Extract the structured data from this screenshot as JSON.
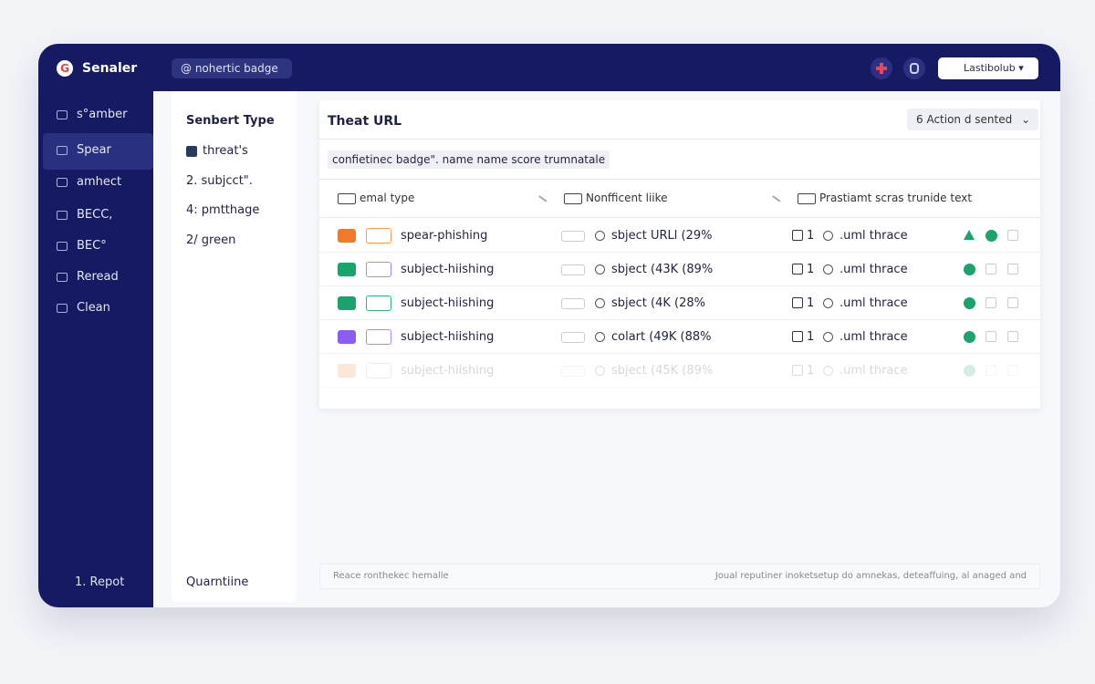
{
  "header": {
    "logo": "G",
    "app_name": "Senaler",
    "badge": "@ nohertic badge",
    "account": "Lastibolub"
  },
  "sidebar": {
    "items": [
      "s°amber",
      "Spear",
      "amhect",
      "BECC,",
      "BEC°",
      "Reread",
      "Clean"
    ],
    "footer": "1. Repot"
  },
  "panel": {
    "title": "Senbert Type",
    "items": [
      "threat's",
      "2.  subjcct\".",
      "4:  pmtthage",
      "2/  green"
    ],
    "footer": "Quarntiine"
  },
  "main": {
    "title": "Theat URL",
    "action": "6  Action d sented",
    "filter": "confietinec badge\". name name score trumnatale",
    "columns": [
      "emal type",
      "Nonfficent liike",
      "Prastiamt scras trunide text"
    ],
    "rows": [
      {
        "type": "spear-phishing",
        "confidence": "sbject URLl (29%",
        "num": "1",
        "text": ".uml thrace"
      },
      {
        "type": "subject-hiishing",
        "confidence": "sbject (43K (89%",
        "num": "1",
        "text": ".uml thrace"
      },
      {
        "type": "subject-hiishing",
        "confidence": "sbject (4K (28%",
        "num": "1",
        "text": ".uml thrace"
      },
      {
        "type": "subject-hiishing",
        "confidence": "colart (49K (88%",
        "num": "1",
        "text": ".uml thrace"
      },
      {
        "type": "subject-hiishing",
        "confidence": "sbject (45K (89%",
        "num": "1",
        "text": ".uml thrace"
      }
    ]
  },
  "footer": {
    "left": "Reace ronthekec hemalle",
    "right": "Joual reputiner inoketsetup do amnekas, deteaffuing, al anaged and"
  }
}
